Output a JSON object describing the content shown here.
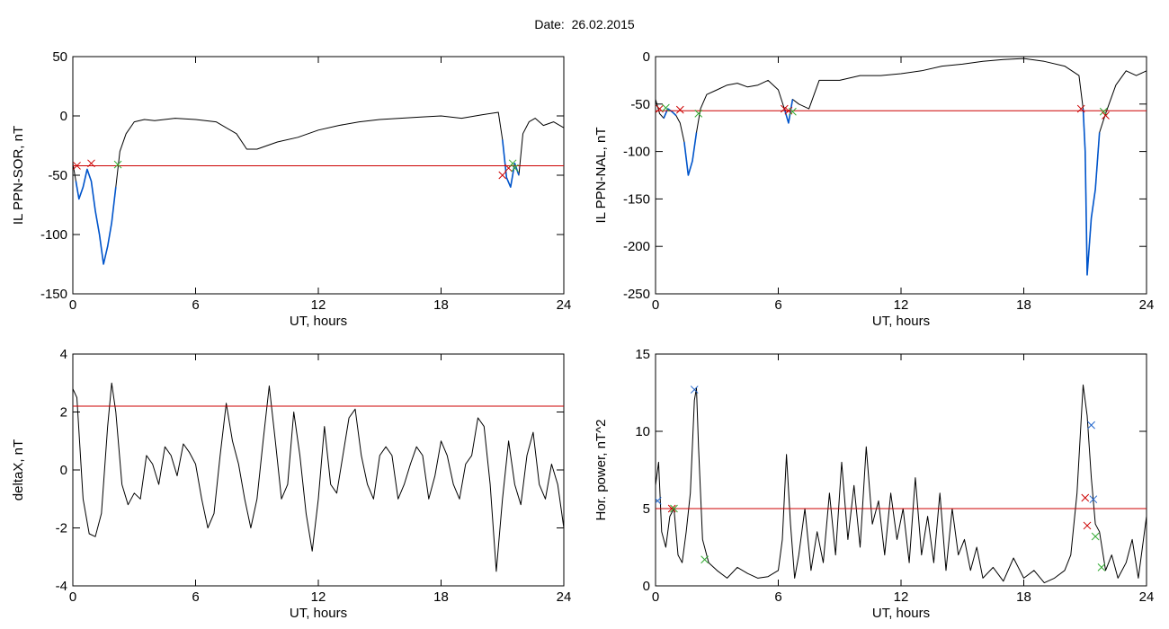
{
  "header": {
    "date_label": "Date:",
    "date_value": "26.02.2015"
  },
  "colors": {
    "trace": "#000000",
    "threshold": "#cc0000",
    "event": "#0055cc",
    "marker_red": "#cc0000",
    "marker_green": "#33aa33",
    "marker_blue": "#2266cc"
  },
  "chart_data": [
    {
      "type": "line",
      "title": "",
      "xlabel": "UT, hours",
      "ylabel": "IL PPN-SOR, nT",
      "xlim": [
        0,
        24
      ],
      "ylim": [
        -150,
        50
      ],
      "xticks": [
        0,
        6,
        12,
        18,
        24
      ],
      "yticks": [
        -150,
        -100,
        -50,
        0,
        50
      ],
      "threshold": -42,
      "series": [
        {
          "role": "trace",
          "x": [
            0,
            0.15,
            0.3,
            0.5,
            0.7,
            0.9,
            1.1,
            1.3,
            1.5,
            1.7,
            1.9,
            2.1,
            2.3,
            2.6,
            3.0,
            3.5,
            4.0,
            5.0,
            6.0,
            7.0,
            8.0,
            8.5,
            9.0,
            9.5,
            10.0,
            11.0,
            12.0,
            13.0,
            14.0,
            15.0,
            16.0,
            17.0,
            18.0,
            19.0,
            20.0,
            20.8,
            21.0,
            21.2,
            21.4,
            21.6,
            21.8,
            22.0,
            22.3,
            22.6,
            23.0,
            23.5,
            24.0
          ],
          "y": [
            -40,
            -55,
            -70,
            -60,
            -45,
            -55,
            -80,
            -100,
            -125,
            -110,
            -90,
            -60,
            -30,
            -15,
            -5,
            -3,
            -4,
            -2,
            -3,
            -5,
            -15,
            -28,
            -28,
            -25,
            -22,
            -18,
            -12,
            -8,
            -5,
            -3,
            -2,
            -1,
            0,
            -2,
            1,
            3,
            -20,
            -52,
            -60,
            -40,
            -50,
            -15,
            -5,
            -2,
            -8,
            -5,
            -10
          ]
        },
        {
          "role": "event",
          "x": [
            0.15,
            0.3,
            0.5,
            0.7,
            0.9,
            1.1,
            1.3,
            1.5,
            1.7,
            1.9,
            2.1
          ],
          "y": [
            -55,
            -70,
            -60,
            -45,
            -55,
            -80,
            -100,
            -125,
            -110,
            -90,
            -60
          ]
        },
        {
          "role": "event",
          "x": [
            21.0,
            21.2,
            21.4,
            21.6,
            21.8
          ],
          "y": [
            -20,
            -52,
            -60,
            -40,
            -50
          ]
        }
      ],
      "markers": [
        {
          "x": 0.2,
          "y": -42,
          "color": "red"
        },
        {
          "x": 0.9,
          "y": -40,
          "color": "red"
        },
        {
          "x": 2.2,
          "y": -41,
          "color": "green"
        },
        {
          "x": 21.0,
          "y": -50,
          "color": "red"
        },
        {
          "x": 21.3,
          "y": -44,
          "color": "red"
        },
        {
          "x": 21.5,
          "y": -40,
          "color": "green"
        },
        {
          "x": 21.6,
          "y": -44,
          "color": "green"
        }
      ]
    },
    {
      "type": "line",
      "title": "",
      "xlabel": "UT, hours",
      "ylabel": "IL PPN-NAL, nT",
      "xlim": [
        0,
        24
      ],
      "ylim": [
        -250,
        0
      ],
      "xticks": [
        0,
        6,
        12,
        18,
        24
      ],
      "yticks": [
        -250,
        -200,
        -150,
        -100,
        -50,
        0
      ],
      "threshold": -57,
      "series": [
        {
          "role": "trace",
          "x": [
            0,
            0.2,
            0.4,
            0.6,
            0.8,
            1.0,
            1.2,
            1.4,
            1.6,
            1.8,
            2.0,
            2.2,
            2.5,
            3.0,
            3.5,
            4.0,
            4.5,
            5.0,
            5.5,
            6.0,
            6.3,
            6.5,
            6.7,
            7.0,
            7.5,
            8.0,
            9.0,
            10.0,
            11.0,
            12.0,
            13.0,
            14.0,
            15.0,
            16.0,
            17.0,
            18.0,
            19.0,
            20.0,
            20.7,
            20.9,
            21.0,
            21.1,
            21.3,
            21.5,
            21.7,
            22.0,
            22.5,
            23.0,
            23.5,
            24.0
          ],
          "y": [
            -45,
            -60,
            -65,
            -55,
            -58,
            -62,
            -70,
            -90,
            -125,
            -110,
            -80,
            -55,
            -40,
            -35,
            -30,
            -28,
            -32,
            -30,
            -25,
            -35,
            -55,
            -70,
            -45,
            -50,
            -55,
            -25,
            -25,
            -20,
            -20,
            -18,
            -15,
            -10,
            -8,
            -5,
            -3,
            -2,
            -5,
            -10,
            -20,
            -55,
            -100,
            -230,
            -170,
            -140,
            -80,
            -60,
            -30,
            -15,
            -20,
            -15
          ]
        },
        {
          "role": "event",
          "x": [
            0.4,
            0.6,
            0.8,
            1.0
          ],
          "y": [
            -65,
            -55,
            -58,
            -62
          ]
        },
        {
          "role": "event",
          "x": [
            1.4,
            1.6,
            1.8,
            2.0
          ],
          "y": [
            -90,
            -125,
            -110,
            -80
          ]
        },
        {
          "role": "event",
          "x": [
            6.3,
            6.5,
            6.7
          ],
          "y": [
            -55,
            -70,
            -45
          ]
        },
        {
          "role": "event",
          "x": [
            20.9,
            21.0,
            21.1,
            21.3,
            21.5,
            21.7
          ],
          "y": [
            -55,
            -100,
            -230,
            -170,
            -140,
            -80
          ]
        }
      ],
      "markers": [
        {
          "x": 0.2,
          "y": -55,
          "color": "red"
        },
        {
          "x": 0.5,
          "y": -54,
          "color": "green"
        },
        {
          "x": 1.2,
          "y": -56,
          "color": "red"
        },
        {
          "x": 2.1,
          "y": -60,
          "color": "green"
        },
        {
          "x": 6.3,
          "y": -55,
          "color": "red"
        },
        {
          "x": 6.5,
          "y": -57,
          "color": "red"
        },
        {
          "x": 6.7,
          "y": -58,
          "color": "green"
        },
        {
          "x": 20.8,
          "y": -55,
          "color": "red"
        },
        {
          "x": 21.9,
          "y": -58,
          "color": "green"
        },
        {
          "x": 22.0,
          "y": -62,
          "color": "red"
        }
      ]
    },
    {
      "type": "line",
      "title": "",
      "xlabel": "UT, hours",
      "ylabel": "deltaX, nT",
      "xlim": [
        0,
        24
      ],
      "ylim": [
        -4,
        4
      ],
      "xticks": [
        0,
        6,
        12,
        18,
        24
      ],
      "yticks": [
        -4,
        -2,
        0,
        2,
        4
      ],
      "threshold": 2.2,
      "series": [
        {
          "role": "trace",
          "x": [
            0,
            0.2,
            0.5,
            0.8,
            1.1,
            1.4,
            1.7,
            1.9,
            2.1,
            2.4,
            2.7,
            3.0,
            3.3,
            3.6,
            3.9,
            4.2,
            4.5,
            4.8,
            5.1,
            5.4,
            5.7,
            6.0,
            6.3,
            6.6,
            6.9,
            7.2,
            7.5,
            7.8,
            8.1,
            8.4,
            8.7,
            9.0,
            9.3,
            9.6,
            9.9,
            10.2,
            10.5,
            10.8,
            11.1,
            11.4,
            11.7,
            12.0,
            12.3,
            12.6,
            12.9,
            13.2,
            13.5,
            13.8,
            14.1,
            14.4,
            14.7,
            15.0,
            15.3,
            15.6,
            15.9,
            16.2,
            16.5,
            16.8,
            17.1,
            17.4,
            17.7,
            18.0,
            18.3,
            18.6,
            18.9,
            19.2,
            19.5,
            19.8,
            20.1,
            20.4,
            20.7,
            21.0,
            21.3,
            21.6,
            21.9,
            22.2,
            22.5,
            22.8,
            23.1,
            23.4,
            23.7,
            24.0
          ],
          "y": [
            2.8,
            2.5,
            -1.0,
            -2.2,
            -2.3,
            -1.5,
            1.5,
            3.0,
            2.0,
            -0.5,
            -1.2,
            -0.8,
            -1.0,
            0.5,
            0.2,
            -0.5,
            0.8,
            0.5,
            -0.2,
            0.9,
            0.6,
            0.2,
            -1.0,
            -2.0,
            -1.5,
            0.5,
            2.3,
            1.0,
            0.2,
            -1.0,
            -2.0,
            -1.0,
            1.0,
            2.9,
            1.0,
            -1.0,
            -0.5,
            2.0,
            0.5,
            -1.5,
            -2.8,
            -1.0,
            1.5,
            -0.5,
            -0.8,
            0.5,
            1.8,
            2.1,
            0.5,
            -0.5,
            -1.0,
            0.5,
            0.8,
            0.5,
            -1.0,
            -0.5,
            0.2,
            0.8,
            0.5,
            -1.0,
            -0.2,
            1.0,
            0.5,
            -0.5,
            -1.0,
            0.2,
            0.5,
            1.8,
            1.5,
            -0.5,
            -3.5,
            -1.0,
            1.0,
            -0.5,
            -1.2,
            0.5,
            1.3,
            -0.5,
            -1.0,
            0.2,
            -0.5,
            -2.0
          ]
        }
      ],
      "markers": []
    },
    {
      "type": "line",
      "title": "",
      "xlabel": "UT, hours",
      "ylabel": "Hor. power, nT^2",
      "xlim": [
        0,
        24
      ],
      "ylim": [
        0,
        15
      ],
      "xticks": [
        0,
        6,
        12,
        18,
        24
      ],
      "yticks": [
        0,
        5,
        10,
        15
      ],
      "threshold": 5.0,
      "series": [
        {
          "role": "trace",
          "x": [
            0,
            0.15,
            0.3,
            0.5,
            0.7,
            0.9,
            1.1,
            1.3,
            1.5,
            1.7,
            1.9,
            2.0,
            2.1,
            2.3,
            2.6,
            3.0,
            3.5,
            4.0,
            4.5,
            5.0,
            5.5,
            6.0,
            6.2,
            6.4,
            6.6,
            6.8,
            7.0,
            7.3,
            7.6,
            7.9,
            8.2,
            8.5,
            8.8,
            9.1,
            9.4,
            9.7,
            10.0,
            10.3,
            10.6,
            10.9,
            11.2,
            11.5,
            11.8,
            12.1,
            12.4,
            12.7,
            13.0,
            13.3,
            13.6,
            13.9,
            14.2,
            14.5,
            14.8,
            15.1,
            15.4,
            15.7,
            16.0,
            16.5,
            17.0,
            17.5,
            18.0,
            18.5,
            19.0,
            19.5,
            20.0,
            20.3,
            20.6,
            20.9,
            21.1,
            21.3,
            21.5,
            21.7,
            22.0,
            22.3,
            22.6,
            23.0,
            23.3,
            23.6,
            24.0
          ],
          "y": [
            6.5,
            8.0,
            3.5,
            2.5,
            4.5,
            5.0,
            2.0,
            1.5,
            3.5,
            6.0,
            12.0,
            12.8,
            9.0,
            3.0,
            1.5,
            1.0,
            0.5,
            1.2,
            0.8,
            0.5,
            0.6,
            1.0,
            3.0,
            8.5,
            4.0,
            0.5,
            2.0,
            5.0,
            1.0,
            3.5,
            1.5,
            6.0,
            2.0,
            8.0,
            3.0,
            6.5,
            2.5,
            9.0,
            4.0,
            5.5,
            2.0,
            6.0,
            3.0,
            5.0,
            1.5,
            7.0,
            2.0,
            4.5,
            1.5,
            6.0,
            1.0,
            5.0,
            2.0,
            3.0,
            1.0,
            2.5,
            0.5,
            1.2,
            0.3,
            1.8,
            0.5,
            1.0,
            0.2,
            0.5,
            1.0,
            2.0,
            6.0,
            13.0,
            11.0,
            7.0,
            4.0,
            3.5,
            1.0,
            2.0,
            0.5,
            1.5,
            3.0,
            0.5,
            4.5
          ]
        }
      ],
      "markers": [
        {
          "x": 0.1,
          "y": 5.5,
          "color": "blue"
        },
        {
          "x": 0.8,
          "y": 5.0,
          "color": "red"
        },
        {
          "x": 0.9,
          "y": 5.0,
          "color": "green"
        },
        {
          "x": 1.9,
          "y": 12.7,
          "color": "blue"
        },
        {
          "x": 2.4,
          "y": 1.7,
          "color": "green"
        },
        {
          "x": 21.0,
          "y": 5.7,
          "color": "red"
        },
        {
          "x": 21.1,
          "y": 3.9,
          "color": "red"
        },
        {
          "x": 21.3,
          "y": 10.4,
          "color": "blue"
        },
        {
          "x": 21.4,
          "y": 5.6,
          "color": "blue"
        },
        {
          "x": 21.5,
          "y": 3.2,
          "color": "green"
        },
        {
          "x": 21.8,
          "y": 1.2,
          "color": "green"
        }
      ]
    }
  ]
}
